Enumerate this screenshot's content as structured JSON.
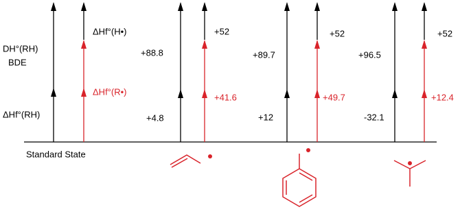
{
  "labels": {
    "dh_rh": "DH°(RH)",
    "bde": "BDE",
    "hf_rh": "ΔHf°(RH)",
    "hf_h": "ΔHf°(H•)",
    "hf_r": "ΔHf°(R•)",
    "standard_state": "Standard State"
  },
  "groups": [
    {
      "bde": "+88.8",
      "hf_rh": "+4.8",
      "hf_h": "+52",
      "hf_r": "+41.6"
    },
    {
      "bde": "+89.7",
      "hf_rh": "+12",
      "hf_h": "+52",
      "hf_r": "+49.7"
    },
    {
      "bde": "+96.5",
      "hf_rh": "-32.1",
      "hf_h": "+52",
      "hf_r": "+12.4"
    }
  ]
}
